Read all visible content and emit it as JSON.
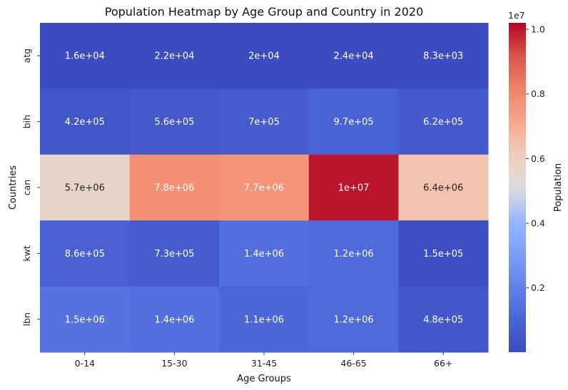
{
  "chart_data": {
    "type": "heatmap",
    "title": "Population Heatmap by Age Group and Country in 2020",
    "xlabel": "Age Groups",
    "ylabel": "Countries",
    "x_categories": [
      "0-14",
      "15-30",
      "31-45",
      "46-65",
      "66+"
    ],
    "y_categories": [
      "atg",
      "bih",
      "can",
      "kwt",
      "lbn"
    ],
    "values": [
      [
        16000,
        22000,
        20000,
        24000,
        8300
      ],
      [
        420000,
        560000,
        700000,
        970000,
        620000
      ],
      [
        5700000,
        7800000,
        7700000,
        10000000,
        6400000
      ],
      [
        860000,
        730000,
        1400000,
        1200000,
        150000
      ],
      [
        1500000,
        1400000,
        1100000,
        1200000,
        480000
      ]
    ],
    "annotations": [
      [
        "1.6e+04",
        "2.2e+04",
        "2e+04",
        "2.4e+04",
        "8.3e+03"
      ],
      [
        "4.2e+05",
        "5.6e+05",
        "7e+05",
        "9.7e+05",
        "6.2e+05"
      ],
      [
        "5.7e+06",
        "7.8e+06",
        "7.7e+06",
        "1e+07",
        "6.4e+06"
      ],
      [
        "8.6e+05",
        "7.3e+05",
        "1.4e+06",
        "1.2e+06",
        "1.5e+05"
      ],
      [
        "1.5e+06",
        "1.4e+06",
        "1.1e+06",
        "1.2e+06",
        "4.8e+05"
      ]
    ],
    "colormap": "coolwarm",
    "colorbar": {
      "label": "Population",
      "multiplier": "1e7",
      "range": [
        8300,
        10200000
      ],
      "ticks": [
        0.2,
        0.4,
        0.6,
        0.8,
        1.0
      ],
      "tick_labels": [
        "0.2",
        "0.4",
        "0.6",
        "0.8",
        "1.0"
      ]
    }
  }
}
